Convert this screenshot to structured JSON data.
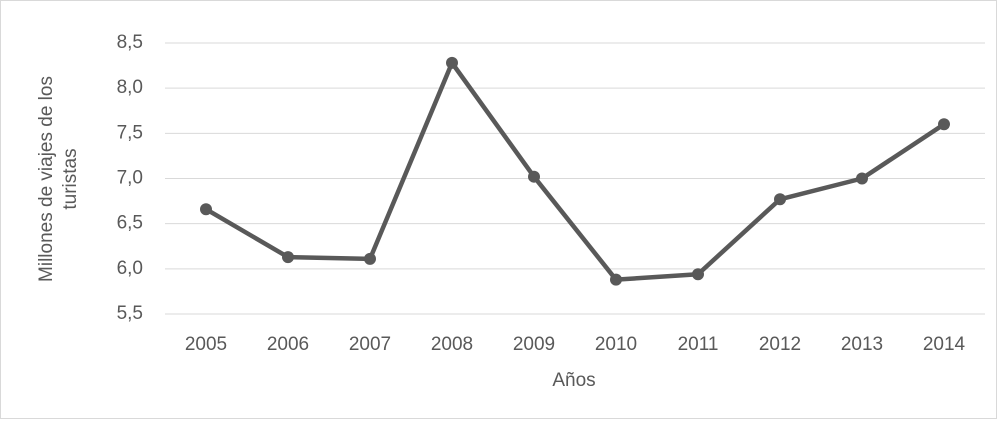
{
  "chart_data": {
    "type": "line",
    "x_label": "Años",
    "y_label_lines": [
      "Millones de viajes de los",
      "turistas"
    ],
    "categories": [
      "2005",
      "2006",
      "2007",
      "2008",
      "2009",
      "2010",
      "2011",
      "2012",
      "2013",
      "2014"
    ],
    "series": [
      {
        "color": "#595959",
        "values": [
          6.66,
          6.13,
          6.11,
          8.28,
          7.02,
          5.88,
          5.94,
          6.77,
          7.0,
          7.6
        ]
      }
    ],
    "ylim": [
      5.5,
      8.5
    ],
    "yticks": [
      {
        "value": 5.5,
        "label": "5,5"
      },
      {
        "value": 6.0,
        "label": "6,0"
      },
      {
        "value": 6.5,
        "label": "6,5"
      },
      {
        "value": 7.0,
        "label": "7,0"
      },
      {
        "value": 7.5,
        "label": "7,5"
      },
      {
        "value": 8.0,
        "label": "8,0"
      },
      {
        "value": 8.5,
        "label": "8,5"
      }
    ],
    "grid": true
  }
}
